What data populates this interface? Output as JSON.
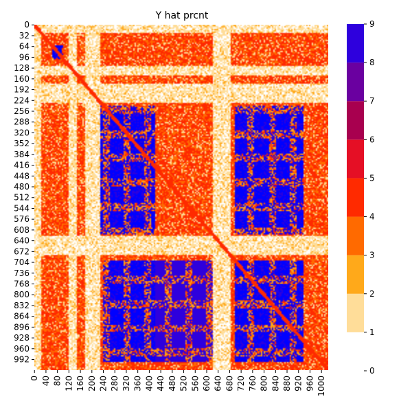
{
  "chart_data": {
    "type": "heatmap",
    "title": "Y hat prcnt",
    "n": 1024,
    "x_ticks": [
      "0",
      "40",
      "80",
      "120",
      "160",
      "200",
      "240",
      "280",
      "320",
      "360",
      "400",
      "440",
      "480",
      "520",
      "560",
      "600",
      "640",
      "680",
      "720",
      "760",
      "800",
      "840",
      "880",
      "920",
      "960",
      "1000"
    ],
    "x_tick_values": [
      0,
      40,
      80,
      120,
      160,
      200,
      240,
      280,
      320,
      360,
      400,
      440,
      480,
      520,
      560,
      600,
      640,
      680,
      720,
      760,
      800,
      840,
      880,
      920,
      960,
      1000
    ],
    "y_ticks": [
      "0",
      "32",
      "64",
      "96",
      "128",
      "160",
      "192",
      "224",
      "256",
      "288",
      "320",
      "352",
      "384",
      "416",
      "448",
      "480",
      "512",
      "544",
      "576",
      "608",
      "640",
      "672",
      "704",
      "736",
      "768",
      "800",
      "832",
      "864",
      "896",
      "928",
      "960",
      "992"
    ],
    "y_tick_values": [
      0,
      32,
      64,
      96,
      128,
      160,
      192,
      224,
      256,
      288,
      320,
      352,
      384,
      416,
      448,
      480,
      512,
      544,
      576,
      608,
      640,
      672,
      704,
      736,
      768,
      800,
      832,
      864,
      896,
      928,
      960,
      992
    ],
    "colorbar": {
      "ticks": [
        "0",
        "1",
        "2",
        "3",
        "4",
        "5",
        "6",
        "7",
        "8",
        "9"
      ],
      "tick_values": [
        0,
        1,
        2,
        3,
        4,
        5,
        6,
        7,
        8,
        9
      ],
      "range": [
        0,
        9
      ],
      "levels": [
        {
          "from": 0,
          "to": 1,
          "color": "#ffffff"
        },
        {
          "from": 1,
          "to": 2,
          "color": "#ffdd99"
        },
        {
          "from": 2,
          "to": 3,
          "color": "#ffa91a"
        },
        {
          "from": 3,
          "to": 4,
          "color": "#ff6a00"
        },
        {
          "from": 4,
          "to": 5,
          "color": "#ff2a00"
        },
        {
          "from": 5,
          "to": 6,
          "color": "#e50f25"
        },
        {
          "from": 6,
          "to": 7,
          "color": "#a8004f"
        },
        {
          "from": 7,
          "to": 8,
          "color": "#6a00a0"
        },
        {
          "from": 8,
          "to": 9,
          "color": "#2e00dd"
        },
        {
          "from": 9,
          "to": 10,
          "color": "#0000ff"
        }
      ]
    },
    "pale_bands": [
      [
        0,
        24
      ],
      [
        120,
        150
      ],
      [
        176,
        232
      ],
      [
        624,
        682
      ]
    ],
    "blue_blocks": [
      {
        "x": [
          60,
          100
        ],
        "y": [
          60,
          100
        ],
        "level": 9
      },
      {
        "x": [
          220,
          420
        ],
        "y": [
          240,
          620
        ],
        "level": 9
      },
      {
        "x": [
          700,
          940
        ],
        "y": [
          240,
          620
        ],
        "level": 9
      },
      {
        "x": [
          240,
          420
        ],
        "y": [
          700,
          1000
        ],
        "level": 9
      },
      {
        "x": [
          700,
          940
        ],
        "y": [
          700,
          1000
        ],
        "level": 9
      },
      {
        "x": [
          420,
          620
        ],
        "y": [
          700,
          1000
        ],
        "level": 8
      }
    ]
  }
}
